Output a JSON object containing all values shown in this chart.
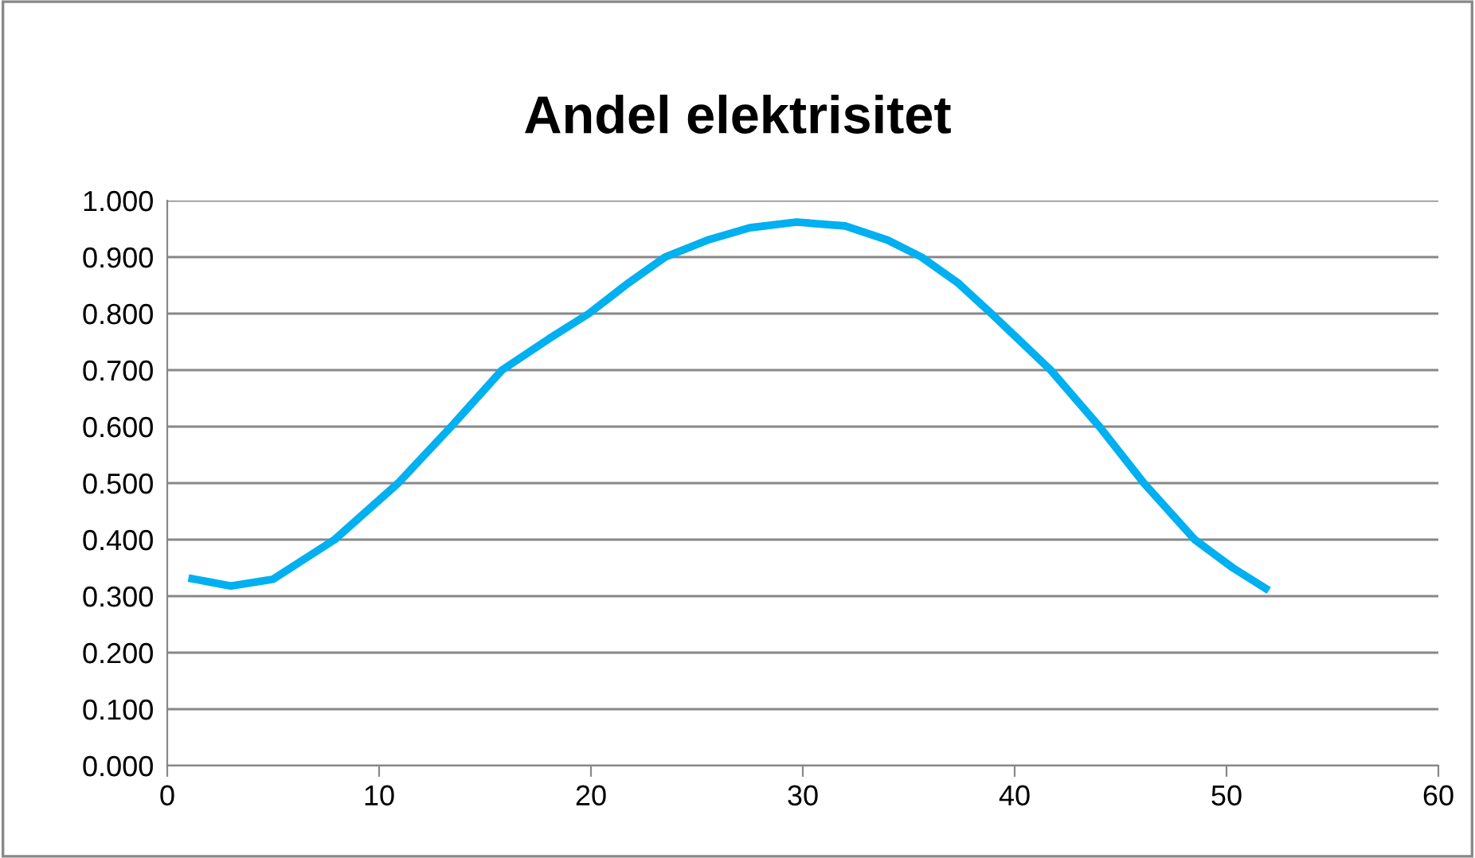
{
  "chart_data": {
    "type": "line",
    "title": "Andel elektrisitet",
    "x": [
      1,
      3,
      5,
      7.9,
      10.9,
      13.4,
      15.8,
      18,
      19.9,
      21.8,
      23.5,
      25.5,
      27.5,
      29.7,
      32,
      34,
      35.6,
      37.3,
      38.9,
      41.7,
      44.0,
      46.1,
      48.5,
      50.3,
      52
    ],
    "series": [
      {
        "color": "#00b0f0",
        "values": [
          0.332,
          0.318,
          0.33,
          0.4,
          0.5,
          0.6,
          0.7,
          0.755,
          0.8,
          0.855,
          0.9,
          0.93,
          0.952,
          0.962,
          0.955,
          0.93,
          0.9,
          0.855,
          0.8,
          0.7,
          0.6,
          0.5,
          0.4,
          0.35,
          0.31
        ]
      }
    ],
    "xlim": [
      0,
      60
    ],
    "xticks": [
      0,
      10,
      20,
      30,
      40,
      50,
      60
    ],
    "ylim": [
      0,
      1
    ],
    "yticks": [
      {
        "value": 0,
        "label": "0.000"
      },
      {
        "value": 0.1,
        "label": "0.100"
      },
      {
        "value": 0.2,
        "label": "0.200"
      },
      {
        "value": 0.3,
        "label": "0.300"
      },
      {
        "value": 0.4,
        "label": "0.400"
      },
      {
        "value": 0.5,
        "label": "0.500"
      },
      {
        "value": 0.6,
        "label": "0.600"
      },
      {
        "value": 0.7,
        "label": "0.700"
      },
      {
        "value": 0.8,
        "label": "0.800"
      },
      {
        "value": 0.9,
        "label": "0.900"
      },
      {
        "value": 1,
        "label": "1.000"
      }
    ],
    "grid": "y",
    "marker": "none",
    "line_style": "solid",
    "legend": false
  }
}
